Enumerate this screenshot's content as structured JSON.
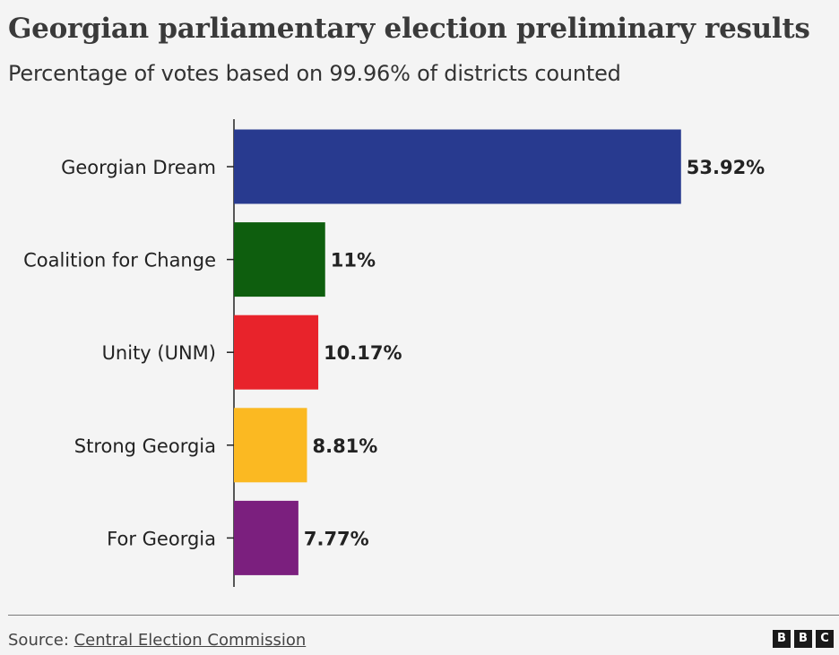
{
  "chart_data": {
    "type": "bar",
    "orientation": "horizontal",
    "title": "Georgian parliamentary election preliminary results",
    "subtitle": "Percentage of votes based on 99.96% of districts counted",
    "categories": [
      "Georgian Dream",
      "Coalition for Change",
      "Unity (UNM)",
      "Strong Georgia",
      "For Georgia"
    ],
    "values": [
      53.92,
      11,
      10.17,
      8.81,
      7.77
    ],
    "value_labels": [
      "53.92%",
      "11%",
      "10.17%",
      "8.81%",
      "7.77%"
    ],
    "colors": [
      "#283a8f",
      "#0e5e0e",
      "#e8232b",
      "#fbb922",
      "#7b1f7e"
    ],
    "xlim": [
      0,
      60
    ],
    "grid": false,
    "legend": "none"
  },
  "source": {
    "prefix": "Source: ",
    "link_text": "Central Election Commission"
  },
  "logo": {
    "letters": [
      "B",
      "B",
      "C"
    ]
  }
}
